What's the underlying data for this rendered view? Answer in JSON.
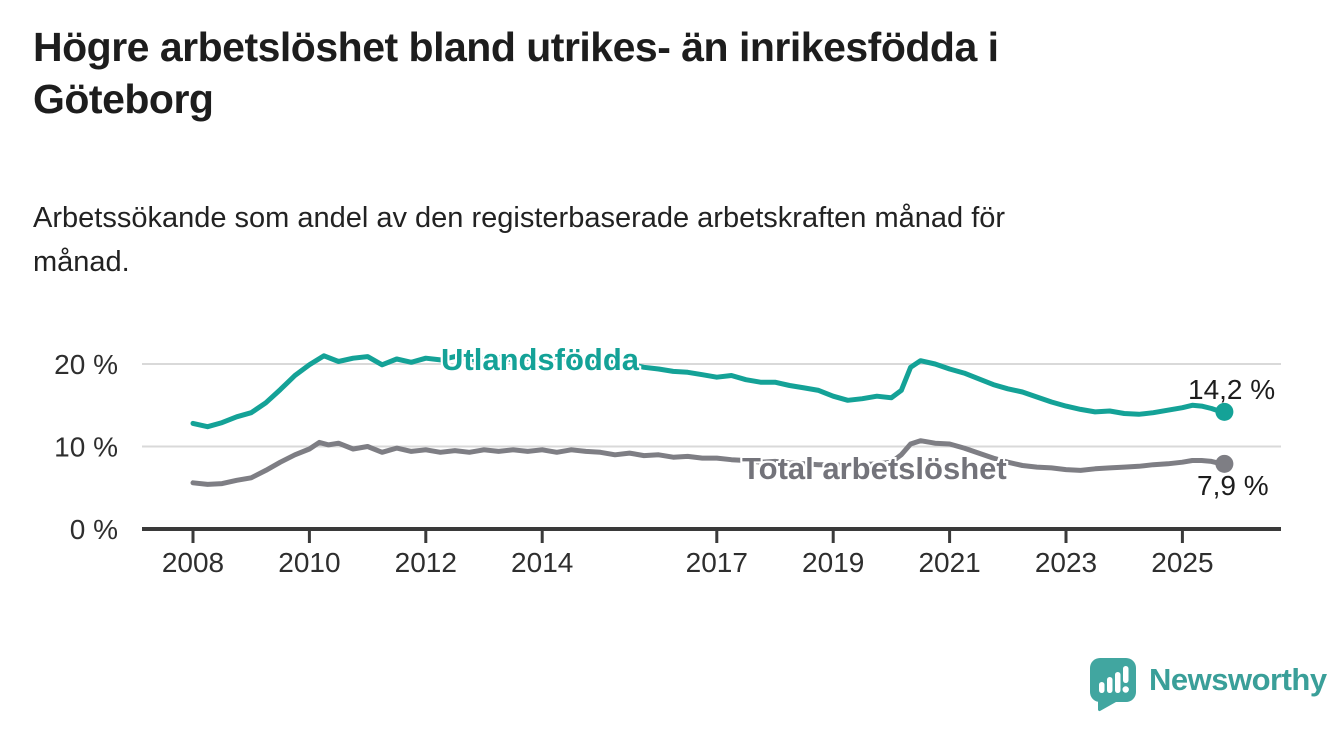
{
  "header": {
    "title": "Högre arbetslöshet bland utrikes- än inrikesfödda i Göteborg",
    "title_lines": [
      "Högre arbetslöshet bland utrikes- än inrikesfödda i",
      "Göteborg"
    ],
    "subtitle": "Arbetssökande som andel av den registerbaserade arbetskraften månad för månad.",
    "subtitle_lines": [
      "Arbetssökande som andel av den registerbaserade arbetskraften månad för",
      "månad."
    ]
  },
  "colors": {
    "series_teal": "#14a297",
    "series_gray": "#7e7e84",
    "label_gray": "#73737a",
    "axis_dark": "#3a3a3a",
    "grid_light": "#d9d9d9",
    "text_dark": "#1d1d1d",
    "text_sub": "#222222",
    "tick_text": "#2e2e2e",
    "brand_teal": "#3a9f99",
    "brand_icon_teal": "#41a6a0"
  },
  "chart_data": {
    "type": "line",
    "unit": "%",
    "grid": "horizontal",
    "legend_position": "inline-labels",
    "xlim": [
      2007.1,
      2026.7
    ],
    "ylim": [
      0,
      22
    ],
    "x_ticks": [
      2008,
      2010,
      2012,
      2014,
      2017,
      2019,
      2021,
      2023,
      2025
    ],
    "y_ticks": [
      {
        "value": 0,
        "label": "0 %"
      },
      {
        "value": 10,
        "label": "10 %"
      },
      {
        "value": 20,
        "label": "20 %"
      }
    ],
    "series": [
      {
        "name": "Utlandsfödda",
        "end_label": "14,2 %",
        "end_value": 14.2,
        "color": "#14a297",
        "points": [
          [
            2008.0,
            12.8
          ],
          [
            2008.25,
            12.4
          ],
          [
            2008.5,
            12.9
          ],
          [
            2008.75,
            13.6
          ],
          [
            2009.0,
            14.1
          ],
          [
            2009.25,
            15.3
          ],
          [
            2009.5,
            16.9
          ],
          [
            2009.75,
            18.6
          ],
          [
            2010.0,
            19.9
          ],
          [
            2010.25,
            21.0
          ],
          [
            2010.5,
            20.3
          ],
          [
            2010.75,
            20.7
          ],
          [
            2011.0,
            20.9
          ],
          [
            2011.25,
            19.9
          ],
          [
            2011.5,
            20.6
          ],
          [
            2011.75,
            20.2
          ],
          [
            2012.0,
            20.7
          ],
          [
            2012.25,
            20.5
          ],
          [
            2012.5,
            20.9
          ],
          [
            2012.75,
            20.5
          ],
          [
            2013.0,
            20.6
          ],
          [
            2013.25,
            20.8
          ],
          [
            2013.5,
            20.5
          ],
          [
            2013.75,
            20.7
          ],
          [
            2014.0,
            20.6
          ],
          [
            2014.25,
            20.8
          ],
          [
            2014.5,
            20.4
          ],
          [
            2014.75,
            20.5
          ],
          [
            2015.0,
            20.3
          ],
          [
            2015.25,
            20.4
          ],
          [
            2015.5,
            20.0
          ],
          [
            2015.75,
            19.6
          ],
          [
            2016.0,
            19.4
          ],
          [
            2016.25,
            19.1
          ],
          [
            2016.5,
            19.0
          ],
          [
            2016.75,
            18.7
          ],
          [
            2017.0,
            18.4
          ],
          [
            2017.25,
            18.6
          ],
          [
            2017.5,
            18.1
          ],
          [
            2017.75,
            17.8
          ],
          [
            2018.0,
            17.8
          ],
          [
            2018.25,
            17.4
          ],
          [
            2018.5,
            17.1
          ],
          [
            2018.75,
            16.8
          ],
          [
            2019.0,
            16.1
          ],
          [
            2019.25,
            15.6
          ],
          [
            2019.5,
            15.8
          ],
          [
            2019.75,
            16.1
          ],
          [
            2020.0,
            15.9
          ],
          [
            2020.17,
            16.8
          ],
          [
            2020.33,
            19.6
          ],
          [
            2020.5,
            20.4
          ],
          [
            2020.75,
            20.0
          ],
          [
            2021.0,
            19.4
          ],
          [
            2021.25,
            18.9
          ],
          [
            2021.5,
            18.2
          ],
          [
            2021.75,
            17.5
          ],
          [
            2022.0,
            17.0
          ],
          [
            2022.25,
            16.6
          ],
          [
            2022.5,
            16.0
          ],
          [
            2022.75,
            15.4
          ],
          [
            2023.0,
            14.9
          ],
          [
            2023.25,
            14.5
          ],
          [
            2023.5,
            14.2
          ],
          [
            2023.75,
            14.3
          ],
          [
            2024.0,
            14.0
          ],
          [
            2024.25,
            13.9
          ],
          [
            2024.5,
            14.1
          ],
          [
            2024.75,
            14.4
          ],
          [
            2025.0,
            14.7
          ],
          [
            2025.17,
            15.0
          ],
          [
            2025.33,
            14.9
          ],
          [
            2025.5,
            14.6
          ],
          [
            2025.67,
            14.2
          ]
        ]
      },
      {
        "name": "Total arbetslöshet",
        "end_label": "7,9 %",
        "end_value": 7.9,
        "color": "#7e7e84",
        "points": [
          [
            2008.0,
            5.6
          ],
          [
            2008.25,
            5.4
          ],
          [
            2008.5,
            5.5
          ],
          [
            2008.75,
            5.9
          ],
          [
            2009.0,
            6.2
          ],
          [
            2009.25,
            7.1
          ],
          [
            2009.5,
            8.1
          ],
          [
            2009.75,
            9.0
          ],
          [
            2010.0,
            9.7
          ],
          [
            2010.17,
            10.5
          ],
          [
            2010.33,
            10.2
          ],
          [
            2010.5,
            10.4
          ],
          [
            2010.75,
            9.7
          ],
          [
            2011.0,
            10.0
          ],
          [
            2011.25,
            9.3
          ],
          [
            2011.5,
            9.8
          ],
          [
            2011.75,
            9.4
          ],
          [
            2012.0,
            9.6
          ],
          [
            2012.25,
            9.3
          ],
          [
            2012.5,
            9.5
          ],
          [
            2012.75,
            9.3
          ],
          [
            2013.0,
            9.6
          ],
          [
            2013.25,
            9.4
          ],
          [
            2013.5,
            9.6
          ],
          [
            2013.75,
            9.4
          ],
          [
            2014.0,
            9.6
          ],
          [
            2014.25,
            9.3
          ],
          [
            2014.5,
            9.6
          ],
          [
            2014.75,
            9.4
          ],
          [
            2015.0,
            9.3
          ],
          [
            2015.25,
            9.0
          ],
          [
            2015.5,
            9.2
          ],
          [
            2015.75,
            8.9
          ],
          [
            2016.0,
            9.0
          ],
          [
            2016.25,
            8.7
          ],
          [
            2016.5,
            8.8
          ],
          [
            2016.75,
            8.6
          ],
          [
            2017.0,
            8.6
          ],
          [
            2017.25,
            8.4
          ],
          [
            2017.5,
            8.3
          ],
          [
            2017.75,
            8.1
          ],
          [
            2018.0,
            8.2
          ],
          [
            2018.25,
            8.0
          ],
          [
            2018.5,
            7.9
          ],
          [
            2018.75,
            7.8
          ],
          [
            2019.0,
            7.8
          ],
          [
            2019.25,
            7.7
          ],
          [
            2019.5,
            7.8
          ],
          [
            2019.75,
            7.9
          ],
          [
            2020.0,
            8.1
          ],
          [
            2020.17,
            9.0
          ],
          [
            2020.33,
            10.3
          ],
          [
            2020.5,
            10.7
          ],
          [
            2020.75,
            10.4
          ],
          [
            2021.0,
            10.3
          ],
          [
            2021.25,
            9.8
          ],
          [
            2021.5,
            9.2
          ],
          [
            2021.75,
            8.6
          ],
          [
            2022.0,
            8.1
          ],
          [
            2022.25,
            7.7
          ],
          [
            2022.5,
            7.5
          ],
          [
            2022.75,
            7.4
          ],
          [
            2023.0,
            7.2
          ],
          [
            2023.25,
            7.1
          ],
          [
            2023.5,
            7.3
          ],
          [
            2023.75,
            7.4
          ],
          [
            2024.0,
            7.5
          ],
          [
            2024.25,
            7.6
          ],
          [
            2024.5,
            7.8
          ],
          [
            2024.75,
            7.9
          ],
          [
            2025.0,
            8.1
          ],
          [
            2025.17,
            8.3
          ],
          [
            2025.33,
            8.3
          ],
          [
            2025.5,
            8.2
          ],
          [
            2025.67,
            7.9
          ]
        ]
      }
    ]
  },
  "branding": {
    "name": "Newsworthy",
    "icon": "newsworthy-speech-bubble-chart-icon"
  }
}
